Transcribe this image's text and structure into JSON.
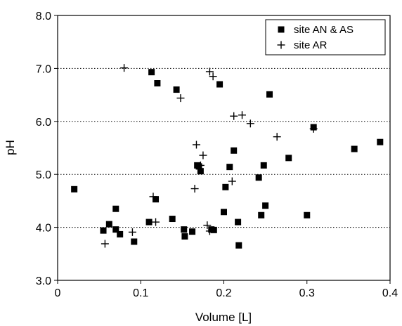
{
  "chart_data": {
    "type": "scatter",
    "xlabel": "Volume [L]",
    "ylabel": "pH",
    "xlim": [
      0,
      0.4
    ],
    "ylim": [
      3.0,
      8.0
    ],
    "xticks": [
      "0",
      "0.1",
      "0.2",
      "0.3",
      "0.4"
    ],
    "yticks": [
      "3.0",
      "4.0",
      "5.0",
      "6.0",
      "7.0",
      "8.0"
    ],
    "grid": "horizontal dotted",
    "legend_position": "top-right",
    "series": [
      {
        "name": "site AN & AS",
        "marker": "square",
        "color": "#000000",
        "points": [
          [
            0.02,
            4.72
          ],
          [
            0.055,
            3.94
          ],
          [
            0.062,
            4.06
          ],
          [
            0.07,
            3.96
          ],
          [
            0.07,
            4.35
          ],
          [
            0.075,
            3.87
          ],
          [
            0.092,
            3.73
          ],
          [
            0.11,
            4.1
          ],
          [
            0.113,
            6.93
          ],
          [
            0.118,
            4.53
          ],
          [
            0.12,
            6.72
          ],
          [
            0.138,
            4.16
          ],
          [
            0.143,
            6.6
          ],
          [
            0.152,
            3.96
          ],
          [
            0.153,
            3.83
          ],
          [
            0.162,
            3.92
          ],
          [
            0.168,
            5.17
          ],
          [
            0.17,
            5.15
          ],
          [
            0.172,
            5.06
          ],
          [
            0.185,
            3.96
          ],
          [
            0.188,
            3.95
          ],
          [
            0.195,
            6.7
          ],
          [
            0.2,
            4.29
          ],
          [
            0.202,
            4.76
          ],
          [
            0.207,
            5.14
          ],
          [
            0.212,
            5.45
          ],
          [
            0.217,
            4.1
          ],
          [
            0.218,
            3.66
          ],
          [
            0.242,
            4.94
          ],
          [
            0.245,
            4.23
          ],
          [
            0.248,
            5.17
          ],
          [
            0.25,
            4.41
          ],
          [
            0.255,
            6.51
          ],
          [
            0.278,
            5.31
          ],
          [
            0.3,
            4.23
          ],
          [
            0.308,
            5.89
          ],
          [
            0.357,
            5.48
          ],
          [
            0.388,
            5.61
          ]
        ]
      },
      {
        "name": "site AR",
        "marker": "plus",
        "color": "#000000",
        "points": [
          [
            0.057,
            3.69
          ],
          [
            0.08,
            7.01
          ],
          [
            0.09,
            3.91
          ],
          [
            0.115,
            4.58
          ],
          [
            0.118,
            4.1
          ],
          [
            0.148,
            6.44
          ],
          [
            0.165,
            4.73
          ],
          [
            0.167,
            5.56
          ],
          [
            0.172,
            5.17
          ],
          [
            0.175,
            5.36
          ],
          [
            0.18,
            4.04
          ],
          [
            0.183,
            3.93
          ],
          [
            0.183,
            6.94
          ],
          [
            0.187,
            6.85
          ],
          [
            0.21,
            4.87
          ],
          [
            0.212,
            6.1
          ],
          [
            0.222,
            6.12
          ],
          [
            0.232,
            5.96
          ],
          [
            0.264,
            5.71
          ],
          [
            0.308,
            5.86
          ]
        ]
      }
    ]
  }
}
